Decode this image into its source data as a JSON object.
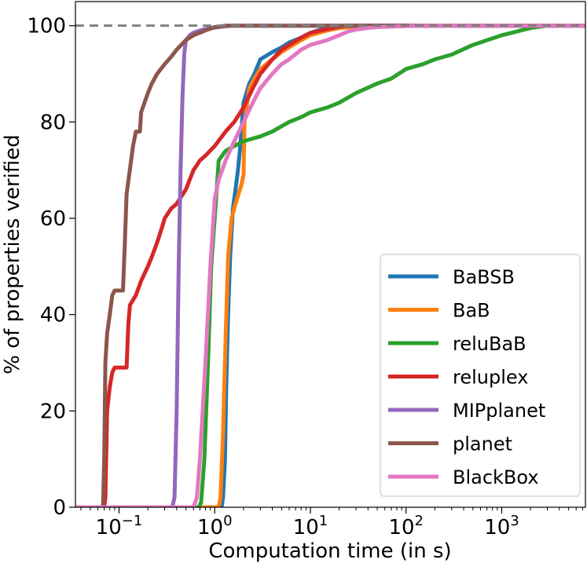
{
  "chart_data": {
    "type": "line",
    "xscale": "log",
    "xlabel": "Computation time (in s)",
    "ylabel": "% of properties verified",
    "xlim": [
      0.035,
      7500
    ],
    "ylim": [
      0,
      105
    ],
    "x_ticks": [
      {
        "value": 0.1,
        "mantissa": "10",
        "exponent": "−1"
      },
      {
        "value": 1,
        "mantissa": "10",
        "exponent": "0"
      },
      {
        "value": 10,
        "mantissa": "10",
        "exponent": "1"
      },
      {
        "value": 100,
        "mantissa": "10",
        "exponent": "2"
      },
      {
        "value": 1000,
        "mantissa": "10",
        "exponent": "3"
      }
    ],
    "y_ticks": [
      {
        "value": 0,
        "label": "0"
      },
      {
        "value": 20,
        "label": "20"
      },
      {
        "value": 40,
        "label": "40"
      },
      {
        "value": 60,
        "label": "60"
      },
      {
        "value": 80,
        "label": "80"
      },
      {
        "value": 100,
        "label": "100"
      }
    ],
    "reference_line": {
      "y": 100,
      "style": "dashed",
      "color": "#808080"
    },
    "legend_position": "lower-right",
    "series": [
      {
        "name": "BaBSB",
        "color": "#1f77b4",
        "x": [
          0.035,
          1.18,
          1.22,
          1.28,
          1.32,
          1.38,
          1.45,
          1.55,
          1.7,
          1.75,
          1.85,
          2.0,
          2.3,
          2.6,
          3.0,
          4,
          5,
          6,
          8,
          10,
          12,
          15,
          20,
          25,
          7500
        ],
        "y": [
          0,
          0,
          2,
          10,
          25,
          40,
          52,
          62,
          68,
          70,
          75,
          84,
          88,
          90,
          93,
          94.5,
          95.5,
          96.5,
          97.5,
          98.5,
          99,
          99.5,
          99.8,
          100,
          100
        ]
      },
      {
        "name": "BaB",
        "color": "#ff7f0e",
        "x": [
          0.035,
          1.1,
          1.15,
          1.22,
          1.3,
          1.38,
          1.5,
          1.65,
          1.9,
          2.0,
          2.05,
          2.3,
          2.6,
          3.0,
          4,
          5,
          6,
          8,
          10,
          15,
          20,
          30,
          35,
          7500
        ],
        "y": [
          0,
          0,
          2,
          15,
          35,
          52,
          60,
          63,
          67,
          69,
          80,
          87,
          89,
          91,
          93,
          94.5,
          95.5,
          97,
          98,
          99,
          99.5,
          99.8,
          100,
          100
        ]
      },
      {
        "name": "reluBaB",
        "color": "#2ca02c",
        "x": [
          0.035,
          0.68,
          0.72,
          0.78,
          0.85,
          0.92,
          1.0,
          1.05,
          1.1,
          1.3,
          1.6,
          2.0,
          3,
          4,
          6,
          8,
          10,
          15,
          20,
          30,
          50,
          70,
          100,
          150,
          200,
          300,
          500,
          1000,
          2000,
          3000,
          7500
        ],
        "y": [
          0,
          0,
          1,
          10,
          30,
          50,
          60,
          66,
          72,
          74,
          75,
          76,
          77,
          78,
          80,
          81,
          82,
          83,
          84,
          86,
          88,
          89,
          91,
          92,
          93,
          94,
          96,
          98,
          99.5,
          100,
          100
        ]
      },
      {
        "name": "reluplex",
        "color": "#d62728",
        "x": [
          0.035,
          0.07,
          0.072,
          0.075,
          0.08,
          0.085,
          0.09,
          0.12,
          0.125,
          0.13,
          0.15,
          0.17,
          0.2,
          0.22,
          0.25,
          0.28,
          0.3,
          0.35,
          0.4,
          0.5,
          0.6,
          0.7,
          0.8,
          1.0,
          1.3,
          1.6,
          2.0,
          2.5,
          3,
          4,
          5,
          6,
          8,
          10,
          15,
          20,
          25,
          7500
        ],
        "y": [
          0,
          0,
          2,
          20,
          25,
          28,
          29,
          29,
          38,
          42,
          44,
          47,
          50,
          52,
          55,
          58,
          60,
          62,
          63,
          66,
          70,
          72,
          73,
          75,
          78,
          80,
          83,
          87,
          90,
          93,
          95,
          96,
          97.5,
          98.5,
          99.3,
          99.8,
          100,
          100
        ]
      },
      {
        "name": "MIPplanet",
        "color": "#9467bd",
        "x": [
          0.035,
          0.36,
          0.38,
          0.4,
          0.42,
          0.44,
          0.46,
          0.48,
          0.5,
          0.55,
          0.6,
          0.7,
          0.8,
          1.0,
          1.2,
          1.5,
          7500
        ],
        "y": [
          0,
          0,
          2,
          20,
          50,
          70,
          85,
          94,
          97,
          98,
          98.5,
          99,
          99.3,
          99.6,
          99.8,
          100,
          100
        ]
      },
      {
        "name": "planet",
        "color": "#8c564b",
        "x": [
          0.035,
          0.068,
          0.07,
          0.072,
          0.075,
          0.08,
          0.085,
          0.09,
          0.11,
          0.115,
          0.12,
          0.14,
          0.15,
          0.165,
          0.17,
          0.2,
          0.22,
          0.25,
          0.3,
          0.35,
          0.4,
          0.5,
          0.6,
          0.8,
          1.0,
          1.3,
          7500
        ],
        "y": [
          0,
          0,
          10,
          30,
          36,
          40,
          44,
          45,
          45,
          55,
          65,
          75,
          78,
          78,
          82,
          86,
          88,
          90,
          92,
          93.5,
          95,
          97,
          98,
          99,
          99.7,
          100,
          100
        ]
      },
      {
        "name": "BlackBox",
        "color": "#e377c2",
        "x": [
          0.035,
          0.6,
          0.65,
          0.7,
          0.8,
          0.9,
          1.0,
          1.1,
          1.3,
          1.6,
          2.0,
          2.5,
          3.0,
          4,
          5,
          6,
          8,
          10,
          15,
          20,
          25,
          30,
          40,
          50,
          70,
          100,
          150,
          200,
          7500
        ],
        "y": [
          0,
          0,
          2,
          10,
          30,
          50,
          64,
          68,
          72,
          76,
          80,
          84,
          87,
          90,
          92,
          93,
          95,
          96,
          97,
          98,
          98.8,
          99.2,
          99.5,
          99.7,
          99.8,
          99.9,
          100,
          100,
          100
        ]
      }
    ]
  }
}
